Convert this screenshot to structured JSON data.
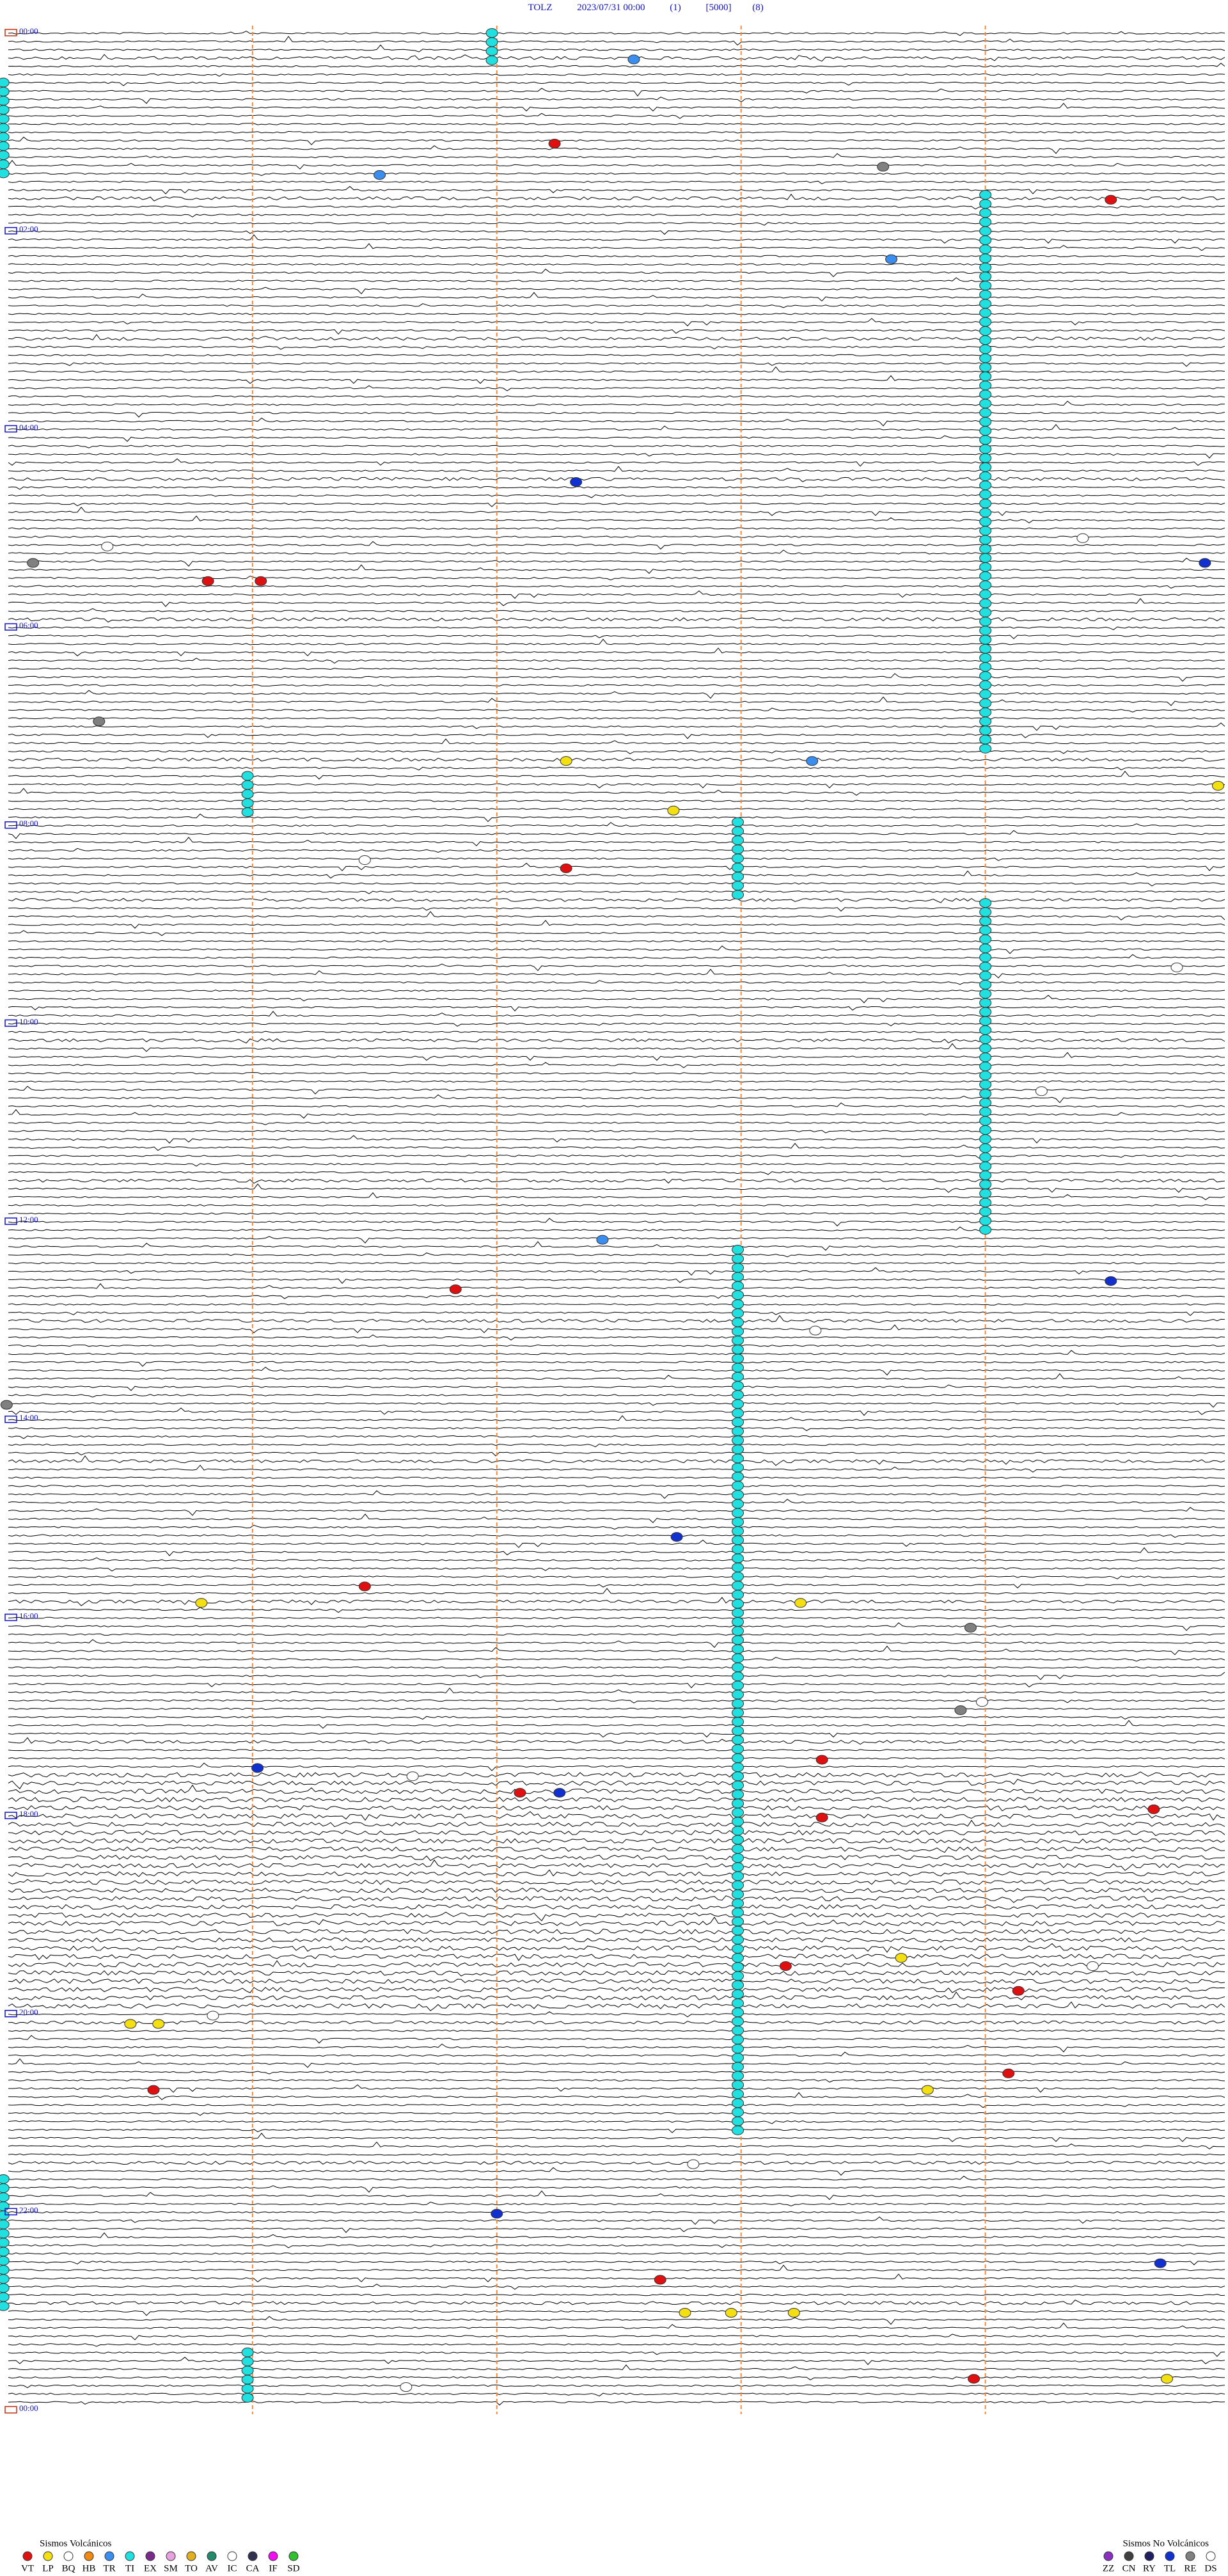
{
  "header": {
    "station": "TOLZ",
    "datetime": "2023/07/31 00:00",
    "channel": "(1)",
    "scale": "[5000]",
    "filter": "(8)"
  },
  "time_labels": [
    "00:00",
    "02:00",
    "04:00",
    "06:00",
    "08:00",
    "10:00",
    "12:00",
    "14:00",
    "16:00",
    "18:00",
    "20:00",
    "22:00",
    "00:00"
  ],
  "legend": {
    "volcanic": {
      "title": "Sismos Volcánicos",
      "items": [
        {
          "code": "VT",
          "color": "#e01010"
        },
        {
          "code": "LP",
          "color": "#f4e010"
        },
        {
          "code": "BQ",
          "color": "#ffffff"
        },
        {
          "code": "HB",
          "color": "#f08a10"
        },
        {
          "code": "TR",
          "color": "#3a8ef0"
        },
        {
          "code": "TI",
          "color": "#20e0e0"
        },
        {
          "code": "EX",
          "color": "#7a2a8a"
        },
        {
          "code": "SM",
          "color": "#e8a0e0"
        },
        {
          "code": "TO",
          "color": "#e0b020"
        },
        {
          "code": "AV",
          "color": "#208a6a"
        },
        {
          "code": "IC",
          "color": "#ffffff"
        },
        {
          "code": "CA",
          "color": "#303050"
        },
        {
          "code": "IF",
          "color": "#f010f0"
        },
        {
          "code": "SD",
          "color": "#30c030"
        }
      ]
    },
    "non_volcanic": {
      "title": "Sismos No Volcánicos",
      "items": [
        {
          "code": "ZZ",
          "color": "#8a30c0"
        },
        {
          "code": "CN",
          "color": "#404040"
        },
        {
          "code": "RY",
          "color": "#202060"
        },
        {
          "code": "TL",
          "color": "#1030d0"
        },
        {
          "code": "RE",
          "color": "#808080"
        },
        {
          "code": "DS",
          "color": "#ffffff"
        }
      ]
    }
  }
}
